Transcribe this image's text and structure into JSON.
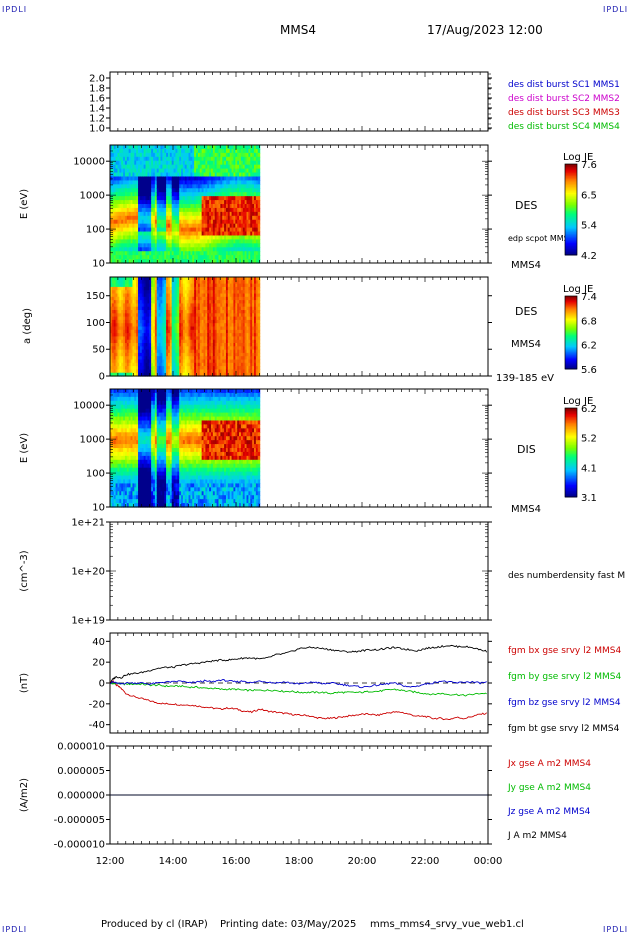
{
  "header": {
    "corner_tl": "IPDLI",
    "corner_tr": "IPDLI",
    "corner_bl": "IPDLI",
    "corner_br": "IPDLI",
    "spacecraft": "MMS4",
    "datetime": "17/Aug/2023 12:00"
  },
  "footer": {
    "produced": "Produced by cl (IRAP)",
    "printing": "Printing date: 03/May/2025",
    "plotname": "mms_mms4_srvy_vue_web1.cl"
  },
  "chart_data": [
    {
      "type": "line",
      "panel": "des dist burst (no data)",
      "yticks": [
        "2.0",
        "1.8",
        "1.6",
        "1.4",
        "1.2",
        "1.0"
      ],
      "ylim": [
        0.9,
        2.1
      ],
      "legend": [
        {
          "label": "des dist burst SC1 MMS1",
          "color": "#0000cc"
        },
        {
          "label": "des dist burst SC2 MMS2",
          "color": "#cc00cc"
        },
        {
          "label": "des dist burst SC3 MMS3",
          "color": "#cc0000"
        },
        {
          "label": "des dist burst SC4 MMS4",
          "color": "#00bb00"
        }
      ]
    },
    {
      "type": "heatmap",
      "panel": "DES energy",
      "ylabel": "E (eV)",
      "yscale": "log",
      "ylim": [
        10,
        30000
      ],
      "yticks": [
        "10000",
        "1000",
        "100",
        "10"
      ],
      "right_label": "DES",
      "sub_label": "edp scpot MMS4",
      "spacecraft_label": "MMS4",
      "colorbar": {
        "title": "Log JE",
        "min": 4.2,
        "max": 7.6,
        "ticks": [
          "7.6",
          "6.5",
          "5.4",
          "4.2"
        ]
      },
      "data_end_hour": 16.75
    },
    {
      "type": "heatmap",
      "panel": "DES pitch angle",
      "ylabel": "a (deg)",
      "ylim": [
        0,
        180
      ],
      "yticks": [
        "150",
        "100",
        "50",
        "0"
      ],
      "right_label": "DES",
      "spacecraft_label": "MMS4",
      "energy_range": "139-185 eV",
      "colorbar": {
        "title": "Log JE",
        "min": 5.6,
        "max": 7.4,
        "ticks": [
          "7.4",
          "6.8",
          "6.2",
          "5.6"
        ]
      },
      "data_end_hour": 16.75
    },
    {
      "type": "heatmap",
      "panel": "DIS energy",
      "ylabel": "E (eV)",
      "yscale": "log",
      "ylim": [
        10,
        30000
      ],
      "yticks": [
        "10000",
        "1000",
        "100",
        "10"
      ],
      "right_label": "DIS",
      "spacecraft_label": "MMS4",
      "colorbar": {
        "title": "Log JE",
        "min": 3.1,
        "max": 6.2,
        "ticks": [
          "6.2",
          "5.2",
          "4.1",
          "3.1"
        ]
      },
      "data_end_hour": 16.75
    },
    {
      "type": "line",
      "panel": "density (no data)",
      "ylabel": "(cm^-3)",
      "yscale": "log",
      "yticks": [
        "1e+21",
        "1e+20",
        "1e+19"
      ],
      "legend": [
        {
          "label": "des numberdensity fast M",
          "color": "#000000"
        }
      ]
    },
    {
      "type": "line",
      "panel": "FGM",
      "ylabel": "(nT)",
      "ylim": [
        -48,
        48
      ],
      "yticks": [
        "40",
        "20",
        "0",
        "-20",
        "-40"
      ],
      "x": [
        12.0,
        12.1,
        12.2,
        12.35,
        12.5,
        12.75,
        13.0,
        13.25,
        13.5,
        13.75,
        14.0,
        14.25,
        14.5,
        14.75,
        15.0,
        15.25,
        15.5,
        15.75,
        16.0,
        16.25,
        16.5,
        16.75,
        17.0,
        17.25,
        17.5,
        17.75,
        18.0,
        18.25,
        18.5,
        18.75,
        19.0,
        19.25,
        19.5,
        19.75,
        20.0,
        20.25,
        20.5,
        20.75,
        21.0,
        21.25,
        21.5,
        21.75,
        22.0,
        22.25,
        22.5,
        22.75,
        23.0,
        23.25,
        23.5,
        23.75,
        24.0
      ],
      "series": [
        {
          "name": "fgm bx gse srvy l2 MMS4",
          "color": "#cc0000",
          "values": [
            0,
            2,
            -2,
            -5,
            -10,
            -13,
            -15,
            -17,
            -19,
            -20,
            -20,
            -21,
            -21,
            -22,
            -23,
            -24,
            -25,
            -24,
            -25,
            -27,
            -28,
            -25,
            -27,
            -28,
            -29,
            -30,
            -31,
            -31,
            -33,
            -34,
            -34,
            -33,
            -32,
            -31,
            -30,
            -30,
            -31,
            -29,
            -28,
            -28,
            -30,
            -32,
            -32,
            -34,
            -34,
            -35,
            -33,
            -34,
            -32,
            -30,
            -29
          ]
        },
        {
          "name": "fgm by gse srvy l2 MMS4",
          "color": "#00bb00",
          "values": [
            0,
            -1,
            0,
            -1,
            -1,
            -1,
            -1,
            -2,
            -2,
            -3,
            -3,
            -3,
            -4,
            -4,
            -5,
            -5,
            -6,
            -6,
            -6,
            -7,
            -7,
            -7,
            -7,
            -7,
            -8,
            -8,
            -9,
            -9,
            -9,
            -9,
            -10,
            -9,
            -9,
            -9,
            -9,
            -8,
            -8,
            -7,
            -6,
            -7,
            -8,
            -9,
            -10,
            -11,
            -10,
            -11,
            -11,
            -12,
            -11,
            -10,
            -10
          ]
        },
        {
          "name": "fgm bz gse srvy l2 MMS4",
          "color": "#0000cc",
          "values": [
            0,
            1,
            0,
            -1,
            0,
            0,
            0,
            -1,
            0,
            1,
            1,
            2,
            0,
            1,
            2,
            1,
            3,
            2,
            1,
            2,
            0,
            2,
            1,
            0,
            1,
            0,
            -1,
            0,
            1,
            -1,
            0,
            -1,
            -2,
            -3,
            -4,
            -3,
            -2,
            -1,
            0,
            -2,
            -4,
            -3,
            -1,
            0,
            2,
            1,
            0,
            1,
            1,
            0,
            1
          ]
        },
        {
          "name": "fgm bt gse srvy l2 MMS4",
          "color": "#000000",
          "values": [
            0,
            4,
            6,
            5,
            8,
            9,
            10,
            12,
            14,
            15,
            15,
            17,
            18,
            19,
            20,
            21,
            22,
            22,
            23,
            24,
            24,
            23,
            24,
            27,
            28,
            30,
            33,
            34,
            34,
            33,
            32,
            31,
            30,
            30,
            31,
            32,
            32,
            33,
            34,
            33,
            32,
            31,
            33,
            34,
            35,
            36,
            35,
            35,
            34,
            32,
            30
          ]
        }
      ],
      "hline": 0
    },
    {
      "type": "line",
      "panel": "current density",
      "ylabel": "(A/m2)",
      "ylim": [
        -1e-05,
        1e-05
      ],
      "yticks": [
        "0.000010",
        "0.000005",
        "0.000000",
        "-0.000005",
        "-0.000010"
      ],
      "series": [
        {
          "name": "Jx gse A m2 MMS4",
          "color": "#cc0000",
          "values": [
            0,
            0
          ]
        },
        {
          "name": "Jy gse A m2 MMS4",
          "color": "#00bb00",
          "values": [
            0,
            0
          ]
        },
        {
          "name": "Jz gse A m2 MMS4",
          "color": "#0000cc",
          "values": [
            0,
            0
          ]
        },
        {
          "name": "J A m2 MMS4",
          "color": "#000000",
          "values": [
            0,
            0
          ]
        }
      ]
    }
  ],
  "xaxis": {
    "ticks": [
      "12:00",
      "14:00",
      "16:00",
      "18:00",
      "20:00",
      "22:00",
      "00:00"
    ],
    "start_hour": 12,
    "end_hour": 24
  }
}
